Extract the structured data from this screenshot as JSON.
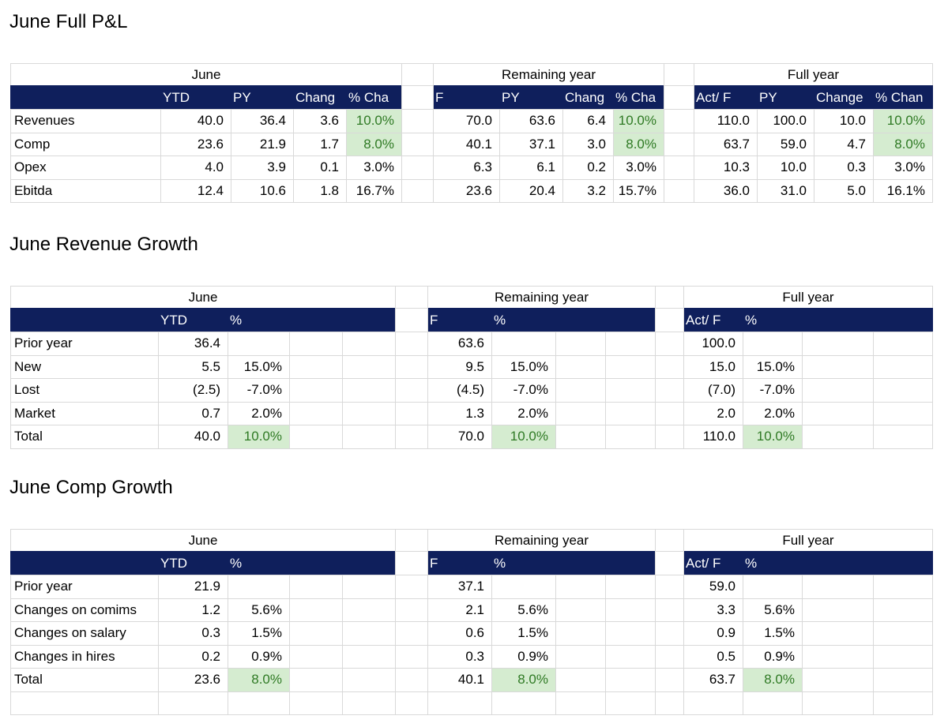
{
  "sections": [
    {
      "title": "June Full P&L",
      "row_labels": [
        "Revenues",
        "Comp",
        "Opex",
        "Ebitda"
      ],
      "blocks": [
        {
          "label": "June",
          "columns": [
            "YTD",
            "PY",
            "Chang",
            "% Cha"
          ],
          "rows": [
            [
              "40.0",
              "36.4",
              "3.6",
              "10.0%"
            ],
            [
              "23.6",
              "21.9",
              "1.7",
              "8.0%"
            ],
            [
              "4.0",
              "3.9",
              "0.1",
              "3.0%"
            ],
            [
              "12.4",
              "10.6",
              "1.8",
              "16.7%"
            ]
          ]
        },
        {
          "label": "Remaining year",
          "columns": [
            "F",
            "PY",
            "Chang",
            "% Cha"
          ],
          "rows": [
            [
              "70.0",
              "63.6",
              "6.4",
              "10.0%"
            ],
            [
              "40.1",
              "37.1",
              "3.0",
              "8.0%"
            ],
            [
              "6.3",
              "6.1",
              "0.2",
              "3.0%"
            ],
            [
              "23.6",
              "20.4",
              "3.2",
              "15.7%"
            ]
          ]
        },
        {
          "label": "Full year",
          "columns": [
            "Act/ F",
            "PY",
            "Change",
            "% Chan"
          ],
          "rows": [
            [
              "110.0",
              "100.0",
              "10.0",
              "10.0%"
            ],
            [
              "63.7",
              "59.0",
              "4.7",
              "8.0%"
            ],
            [
              "10.3",
              "10.0",
              "0.3",
              "3.0%"
            ],
            [
              "36.0",
              "31.0",
              "5.0",
              "16.1%"
            ]
          ]
        }
      ]
    },
    {
      "title": "June Revenue Growth",
      "row_labels": [
        "Prior year",
        "New",
        "Lost",
        "Market",
        "Total"
      ],
      "blocks": [
        {
          "label": "June",
          "columns": [
            "YTD",
            "%"
          ],
          "rows": [
            [
              "36.4"
            ],
            [
              "5.5",
              "15.0%"
            ],
            [
              "(2.5)",
              "-7.0%"
            ],
            [
              "0.7",
              "2.0%"
            ],
            [
              "40.0",
              "10.0%"
            ]
          ]
        },
        {
          "label": "Remaining year",
          "columns": [
            "F",
            "%"
          ],
          "rows": [
            [
              "63.6"
            ],
            [
              "9.5",
              "15.0%"
            ],
            [
              "(4.5)",
              "-7.0%"
            ],
            [
              "1.3",
              "2.0%"
            ],
            [
              "70.0",
              "10.0%"
            ]
          ]
        },
        {
          "label": "Full year",
          "columns": [
            "Act/ F",
            "%"
          ],
          "rows": [
            [
              "100.0"
            ],
            [
              "15.0",
              "15.0%"
            ],
            [
              "(7.0)",
              "-7.0%"
            ],
            [
              "2.0",
              "2.0%"
            ],
            [
              "110.0",
              "10.0%"
            ]
          ]
        }
      ]
    },
    {
      "title": "June Comp Growth",
      "row_labels": [
        "Prior year",
        "Changes on comims",
        "Changes on salary",
        "Changes in hires",
        "Total"
      ],
      "blocks": [
        {
          "label": "June",
          "columns": [
            "YTD",
            "%"
          ],
          "rows": [
            [
              "21.9"
            ],
            [
              "1.2",
              "5.6%"
            ],
            [
              "0.3",
              "1.5%"
            ],
            [
              "0.2",
              "0.9%"
            ],
            [
              "23.6",
              "8.0%"
            ]
          ]
        },
        {
          "label": "Remaining year",
          "columns": [
            "F",
            "%"
          ],
          "rows": [
            [
              "37.1"
            ],
            [
              "2.1",
              "5.6%"
            ],
            [
              "0.6",
              "1.5%"
            ],
            [
              "0.3",
              "0.9%"
            ],
            [
              "40.1",
              "8.0%"
            ]
          ]
        },
        {
          "label": "Full year",
          "columns": [
            "Act/ F",
            "%"
          ],
          "rows": [
            [
              "59.0"
            ],
            [
              "3.3",
              "5.6%"
            ],
            [
              "0.9",
              "1.5%"
            ],
            [
              "0.5",
              "0.9%"
            ],
            [
              "63.7",
              "8.0%"
            ]
          ]
        }
      ]
    }
  ]
}
